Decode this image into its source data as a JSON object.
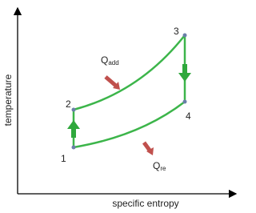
{
  "axes": {
    "y_label": "temperature",
    "x_label": "specific entropy"
  },
  "points": [
    {
      "label": "1"
    },
    {
      "label": "2"
    },
    {
      "label": "3"
    },
    {
      "label": "4"
    }
  ],
  "heat": {
    "added": {
      "symbol": "Q",
      "subscript": "add"
    },
    "rejected": {
      "symbol": "Q",
      "subscript": "re"
    }
  }
}
